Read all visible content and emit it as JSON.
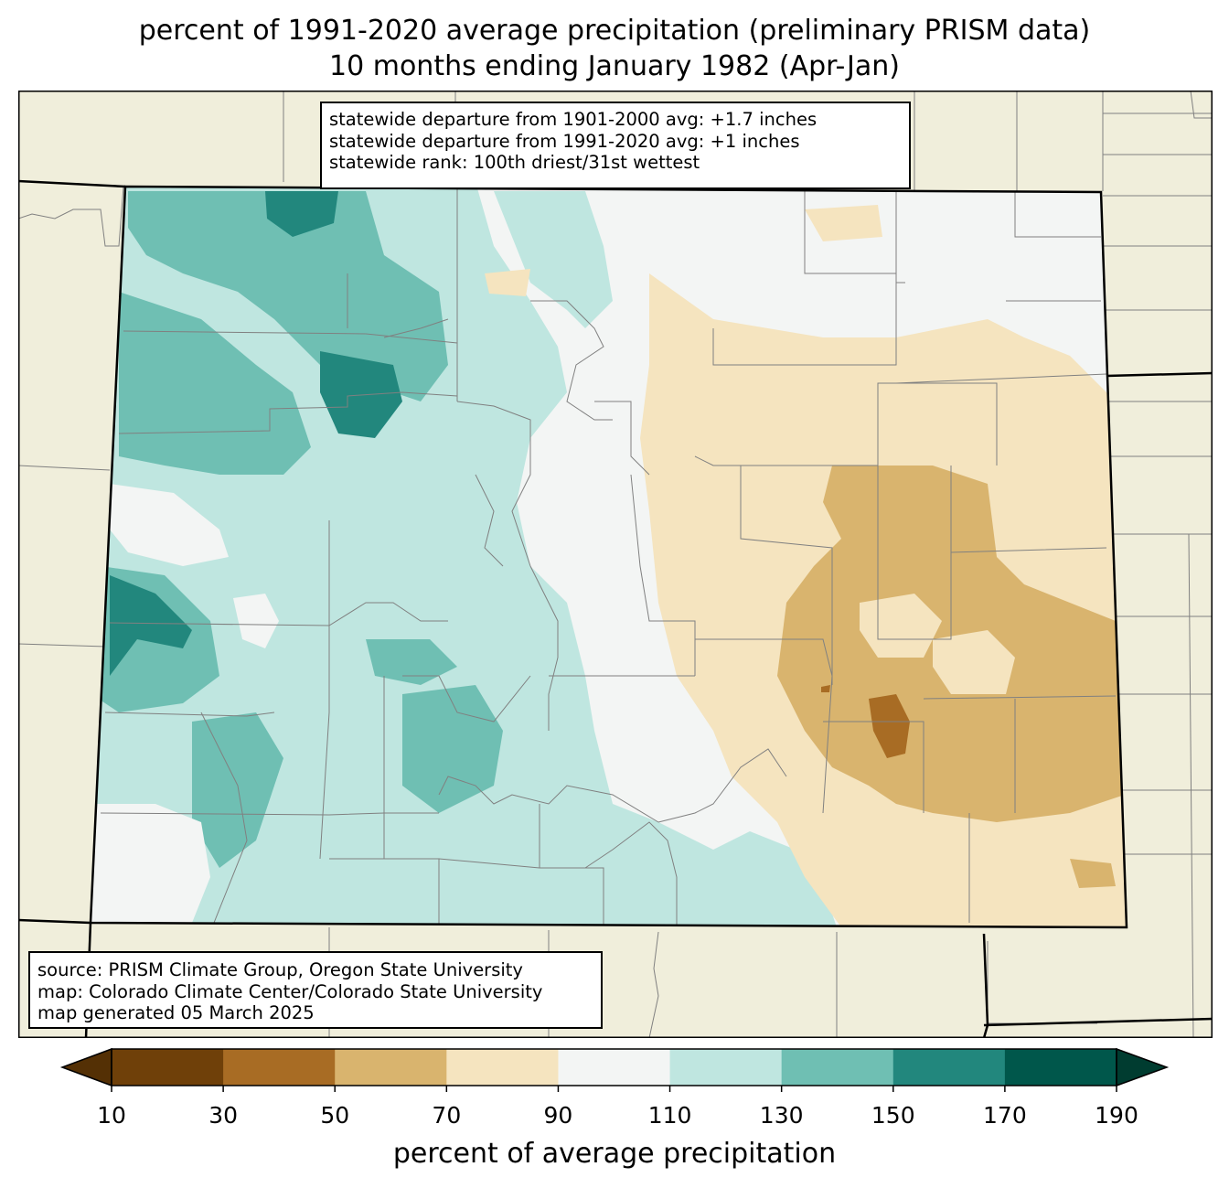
{
  "title_line1": "percent of 1991-2020 average precipitation (preliminary PRISM data)",
  "title_line2": "10 months ending January 1982 (Apr-Jan)",
  "stats": {
    "line1": "statewide departure from 1901-2000 avg: +1.7 inches",
    "line2": "statewide departure from 1991-2020 avg: +1 inches",
    "line3": "statewide rank: 100th driest/31st wettest"
  },
  "source": {
    "line1": "source: PRISM Climate Group, Oregon State University",
    "line2": "map: Colorado Climate Center/Colorado State University",
    "line3": "map generated 05 March 2025"
  },
  "colorbar": {
    "label": "percent of average precipitation",
    "ticks": [
      "10",
      "30",
      "50",
      "70",
      "90",
      "110",
      "130",
      "150",
      "170",
      "190"
    ],
    "colors": {
      "under": "#543005",
      "bins": [
        "#6f4009",
        "#a86c24",
        "#d9b46e",
        "#f5e4bf",
        "#f3f5f4",
        "#bfe6e0",
        "#6fbfb3",
        "#22877d",
        "#00574b"
      ],
      "over": "#003c30"
    }
  },
  "colors": {
    "background": "#f0eedb",
    "state_border": "#000000",
    "county_lines": "#808080"
  }
}
